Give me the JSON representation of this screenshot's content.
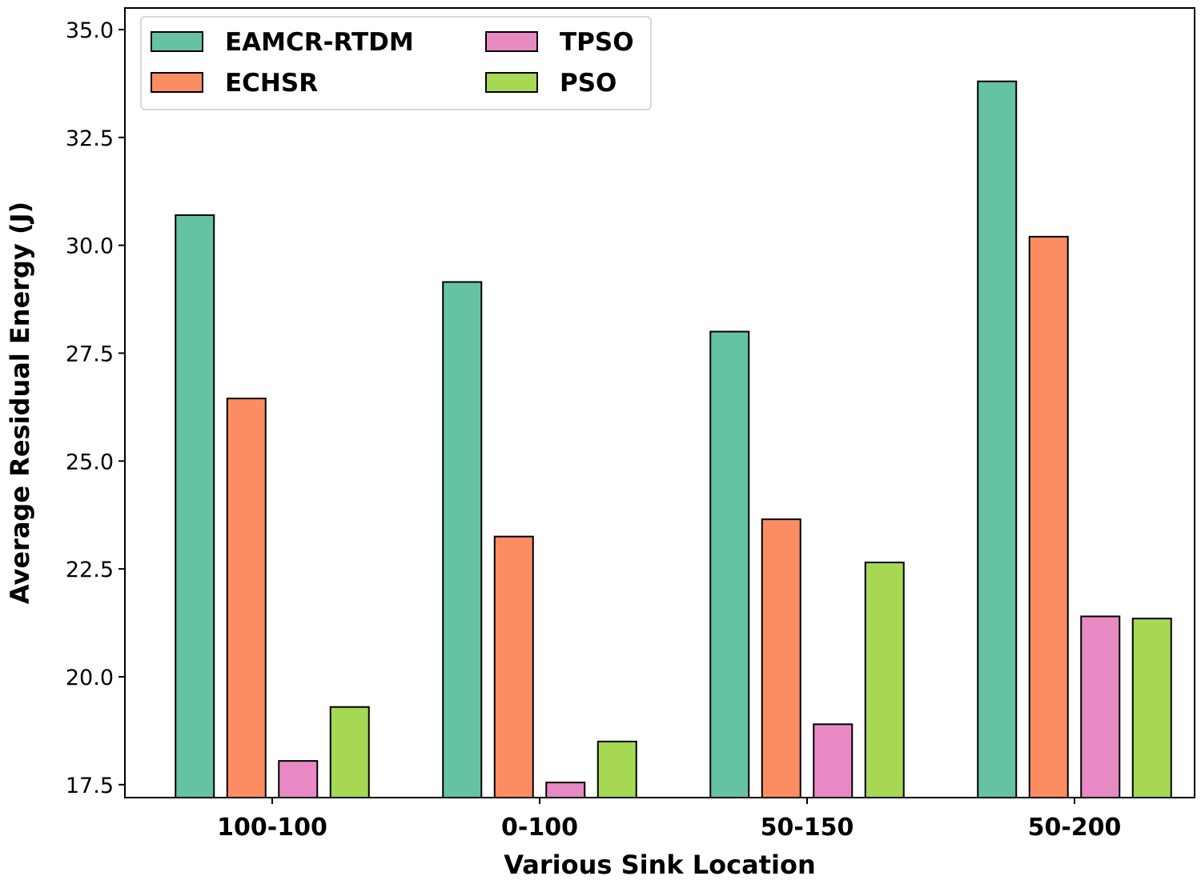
{
  "chart_data": {
    "type": "bar",
    "title": "",
    "xlabel": "Various Sink Location",
    "ylabel": "Average Residual Energy (J)",
    "ylim": [
      17.2,
      35.5
    ],
    "yticks": [
      "17.5",
      "20.0",
      "22.5",
      "25.0",
      "27.5",
      "30.0",
      "32.5",
      "35.0"
    ],
    "categories": [
      "100-100",
      "0-100",
      "50-150",
      "50-200"
    ],
    "series": [
      {
        "name": "EAMCR-RTDM",
        "color": "#66c2a5",
        "values": [
          30.7,
          29.15,
          28.0,
          33.8
        ]
      },
      {
        "name": "ECHSR",
        "color": "#fc8d62",
        "values": [
          26.45,
          23.25,
          23.65,
          30.2
        ]
      },
      {
        "name": "TPSO",
        "color": "#e78ac3",
        "values": [
          18.05,
          17.55,
          18.9,
          21.4
        ]
      },
      {
        "name": "PSO",
        "color": "#a6d854",
        "values": [
          19.3,
          18.5,
          22.65,
          21.35
        ]
      }
    ],
    "legend_position": "top-left",
    "grid": false
  }
}
